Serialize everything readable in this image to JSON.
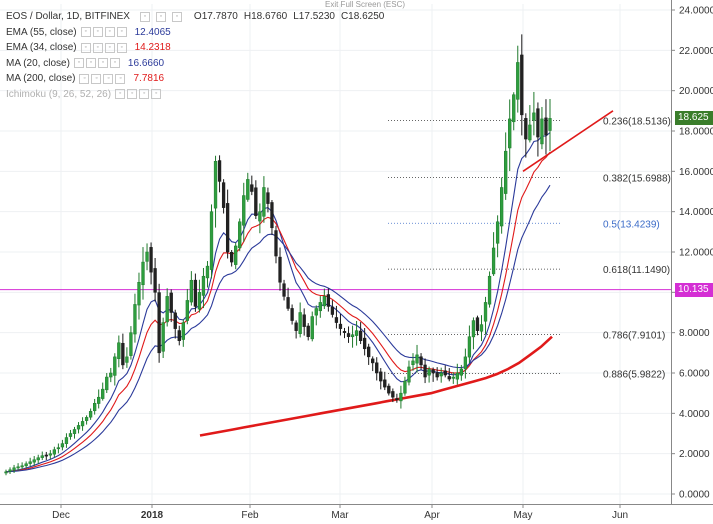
{
  "window": {
    "exit_fullscreen": "Exit Full Screen (ESC)"
  },
  "header": {
    "symbol": "EOS / Dollar, 1D, BITFINEX",
    "open": "O17.7870",
    "high": "H18.6760",
    "low": "L17.5230",
    "close": "C18.6250"
  },
  "indicators": [
    {
      "label": "EMA (55, close)",
      "value": "12.4065",
      "color": "#2b3a9a"
    },
    {
      "label": "EMA (34, close)",
      "value": "14.2318",
      "color": "#e01a1a"
    },
    {
      "label": "MA (20, close)",
      "value": "16.6660",
      "color": "#2b3a9a"
    },
    {
      "label": "MA (200, close)",
      "value": "7.7816",
      "color": "#e01a1a"
    },
    {
      "label": "Ichimoku (9, 26, 52, 26)",
      "value": "",
      "color": "#b0b0b0"
    }
  ],
  "price_tags": {
    "last": "18.625",
    "line": "10.135",
    "last_color": "#3a7d2b",
    "line_color": "#d42fd4"
  },
  "chart_data": {
    "type": "candlestick",
    "y_ticks": [
      "24.0000",
      "22.0000",
      "20.0000",
      "18.0000",
      "16.0000",
      "14.0000",
      "12.0000",
      "10.0000",
      "8.0000",
      "6.0000",
      "4.0000",
      "2.0000",
      "0.0000"
    ],
    "ylim": [
      0,
      24
    ],
    "x_ticks": [
      "Dec",
      "2018",
      "Feb",
      "Mar",
      "Apr",
      "May",
      "Jun"
    ],
    "fib_levels": [
      {
        "label": "0.236(18.5136)",
        "value": 18.5136,
        "color": "#333333"
      },
      {
        "label": "0.382(15.6988)",
        "value": 15.6988,
        "color": "#333333"
      },
      {
        "label": "0.5(13.4239)",
        "value": 13.4239,
        "color": "#3c6cc8"
      },
      {
        "label": "0.618(11.1490)",
        "value": 11.149,
        "color": "#333333"
      },
      {
        "label": "0.786(7.9101)",
        "value": 7.9101,
        "color": "#333333"
      },
      {
        "label": "0.886(5.9822)",
        "value": 5.9822,
        "color": "#333333"
      }
    ],
    "horizontal_line": 10.135,
    "closes": [
      1.1,
      1.2,
      1.3,
      1.35,
      1.4,
      1.5,
      1.6,
      1.7,
      1.8,
      1.9,
      1.9,
      2,
      2.2,
      2.3,
      2.5,
      2.8,
      3,
      3.2,
      3.4,
      3.6,
      3.8,
      4.1,
      4.5,
      4.8,
      5.2,
      5.8,
      6,
      6.8,
      7.5,
      6.4,
      6.8,
      8,
      9.4,
      10.5,
      11.5,
      12,
      11,
      10,
      7,
      8.5,
      9.8,
      9,
      8.2,
      7.6,
      8.5,
      9.6,
      10.6,
      9.3,
      10,
      10.8,
      11.3,
      14,
      16.5,
      15.5,
      14.2,
      12,
      11.5,
      12.3,
      13.5,
      14.8,
      15.6,
      15,
      13.8,
      14,
      15.2,
      14.4,
      13.2,
      11.8,
      10.5,
      9.8,
      9.2,
      8.6,
      8.1,
      9,
      8.3,
      7.8,
      8.8,
      9.2,
      9.5,
      9.8,
      9.3,
      8.9,
      8.5,
      8.2,
      8,
      7.8,
      7.9,
      8.1,
      7.6,
      7.2,
      6.8,
      6.5,
      6,
      5.6,
      5.3,
      5,
      4.8,
      4.7,
      5,
      5.6,
      6.3,
      6.6,
      6.9,
      6.4,
      5.8,
      6.2,
      6,
      5.8,
      6,
      5.9,
      5.7,
      5.8,
      6,
      6.2,
      6.8,
      7.8,
      8.6,
      8.1,
      8.4,
      9.5,
      10.8,
      12.2,
      13.5,
      15.2,
      17,
      18.6,
      19.8,
      21.4,
      18.8,
      17.6,
      18.3,
      18.9,
      17.7,
      18.6,
      17.8,
      18.625
    ],
    "ma200": [
      2.9,
      3.0,
      3.1,
      3.2,
      3.3,
      3.4,
      3.5,
      3.6,
      3.7,
      3.8,
      3.9,
      4.0,
      4.1,
      4.2,
      4.3,
      4.4,
      4.5,
      4.6,
      4.7,
      4.8,
      4.9,
      5.0,
      5.15,
      5.3,
      5.45,
      5.6,
      5.75,
      5.95,
      6.2,
      6.5,
      6.9,
      7.3,
      7.8
    ],
    "trendline_start": 16.0,
    "trendline_end": 19.0
  }
}
